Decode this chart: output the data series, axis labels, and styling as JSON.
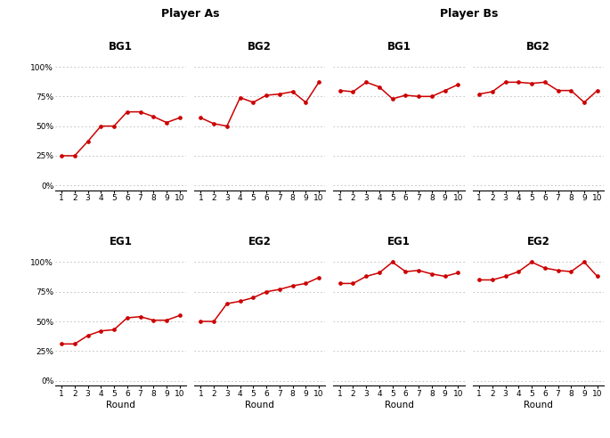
{
  "rounds": [
    1,
    2,
    3,
    4,
    5,
    6,
    7,
    8,
    9,
    10
  ],
  "pa_bg1": [
    0.25,
    0.25,
    0.37,
    0.5,
    0.5,
    0.62,
    0.62,
    0.58,
    0.53,
    0.57
  ],
  "pa_bg2": [
    0.57,
    0.52,
    0.5,
    0.74,
    0.7,
    0.76,
    0.77,
    0.79,
    0.7,
    0.87
  ],
  "pb_bg1": [
    0.8,
    0.79,
    0.87,
    0.83,
    0.73,
    0.76,
    0.75,
    0.75,
    0.8,
    0.85
  ],
  "pb_bg2": [
    0.77,
    0.79,
    0.87,
    0.87,
    0.86,
    0.87,
    0.8,
    0.8,
    0.7,
    0.8
  ],
  "pa_eg1": [
    0.31,
    0.31,
    0.38,
    0.42,
    0.43,
    0.53,
    0.54,
    0.51,
    0.51,
    0.55
  ],
  "pa_eg2": [
    0.5,
    0.5,
    0.65,
    0.67,
    0.7,
    0.75,
    0.77,
    0.8,
    0.82,
    0.87
  ],
  "pb_eg1": [
    0.82,
    0.82,
    0.88,
    0.91,
    1.0,
    0.92,
    0.93,
    0.9,
    0.88,
    0.91
  ],
  "pb_eg2": [
    0.85,
    0.85,
    0.88,
    0.92,
    1.0,
    0.95,
    0.93,
    0.92,
    1.0,
    0.88
  ],
  "line_color": "#cc0000",
  "grid_color": "#bbbbbb",
  "title_player_as": "Player As",
  "title_player_bs": "Player Bs",
  "titles_row0": [
    "BG1",
    "BG2",
    "BG1",
    "BG2"
  ],
  "titles_row1": [
    "EG1",
    "EG2",
    "EG1",
    "EG2"
  ],
  "xlabel": "Round",
  "yticks": [
    0.0,
    0.25,
    0.5,
    0.75,
    1.0
  ],
  "ylabels": [
    "0%",
    "25%",
    "50%",
    "75%",
    "100%"
  ],
  "ylim": [
    -0.04,
    1.12
  ]
}
